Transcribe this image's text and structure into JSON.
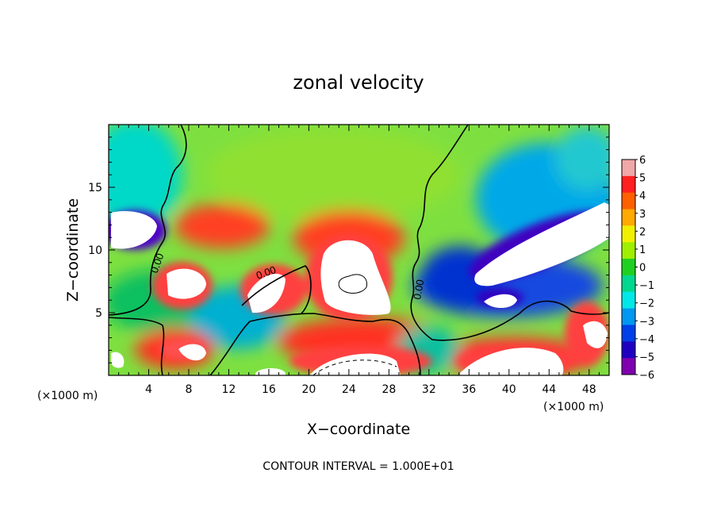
{
  "chart_data": {
    "type": "heatmap",
    "title": "zonal velocity",
    "xlabel": "X−coordinate",
    "ylabel": "Z−coordinate",
    "x_scale_note_left": "(×1000 m)",
    "x_scale_note_right": "(×1000 m)",
    "footer": "CONTOUR INTERVAL = 1.000E+01",
    "xlim": [
      0,
      50
    ],
    "ylim": [
      0,
      20
    ],
    "x_ticks": [
      "4",
      "8",
      "12",
      "16",
      "20",
      "24",
      "28",
      "32",
      "36",
      "40",
      "44",
      "48"
    ],
    "y_ticks": [
      "5",
      "10",
      "15"
    ],
    "colorbar": {
      "range": [
        -6,
        6
      ],
      "ticks": [
        "6",
        "5",
        "4",
        "3",
        "2",
        "1",
        "0",
        "−1",
        "−2",
        "−3",
        "−4",
        "−5",
        "−6"
      ],
      "colors_high_to_low": [
        "#f0a8a8",
        "#ff2020",
        "#ff6000",
        "#ffaa00",
        "#f0f000",
        "#a0ee00",
        "#20d020",
        "#00d890",
        "#00e8e8",
        "#0098f0",
        "#0040e8",
        "#2000c0",
        "#8000b0"
      ],
      "out_of_range_color": "#ffffff"
    },
    "contour_labels": [
      "0.00",
      "0.00",
      "0.00"
    ],
    "description_of_field": "Approximate zonal velocity values; saturated white where |u| > 6"
  }
}
